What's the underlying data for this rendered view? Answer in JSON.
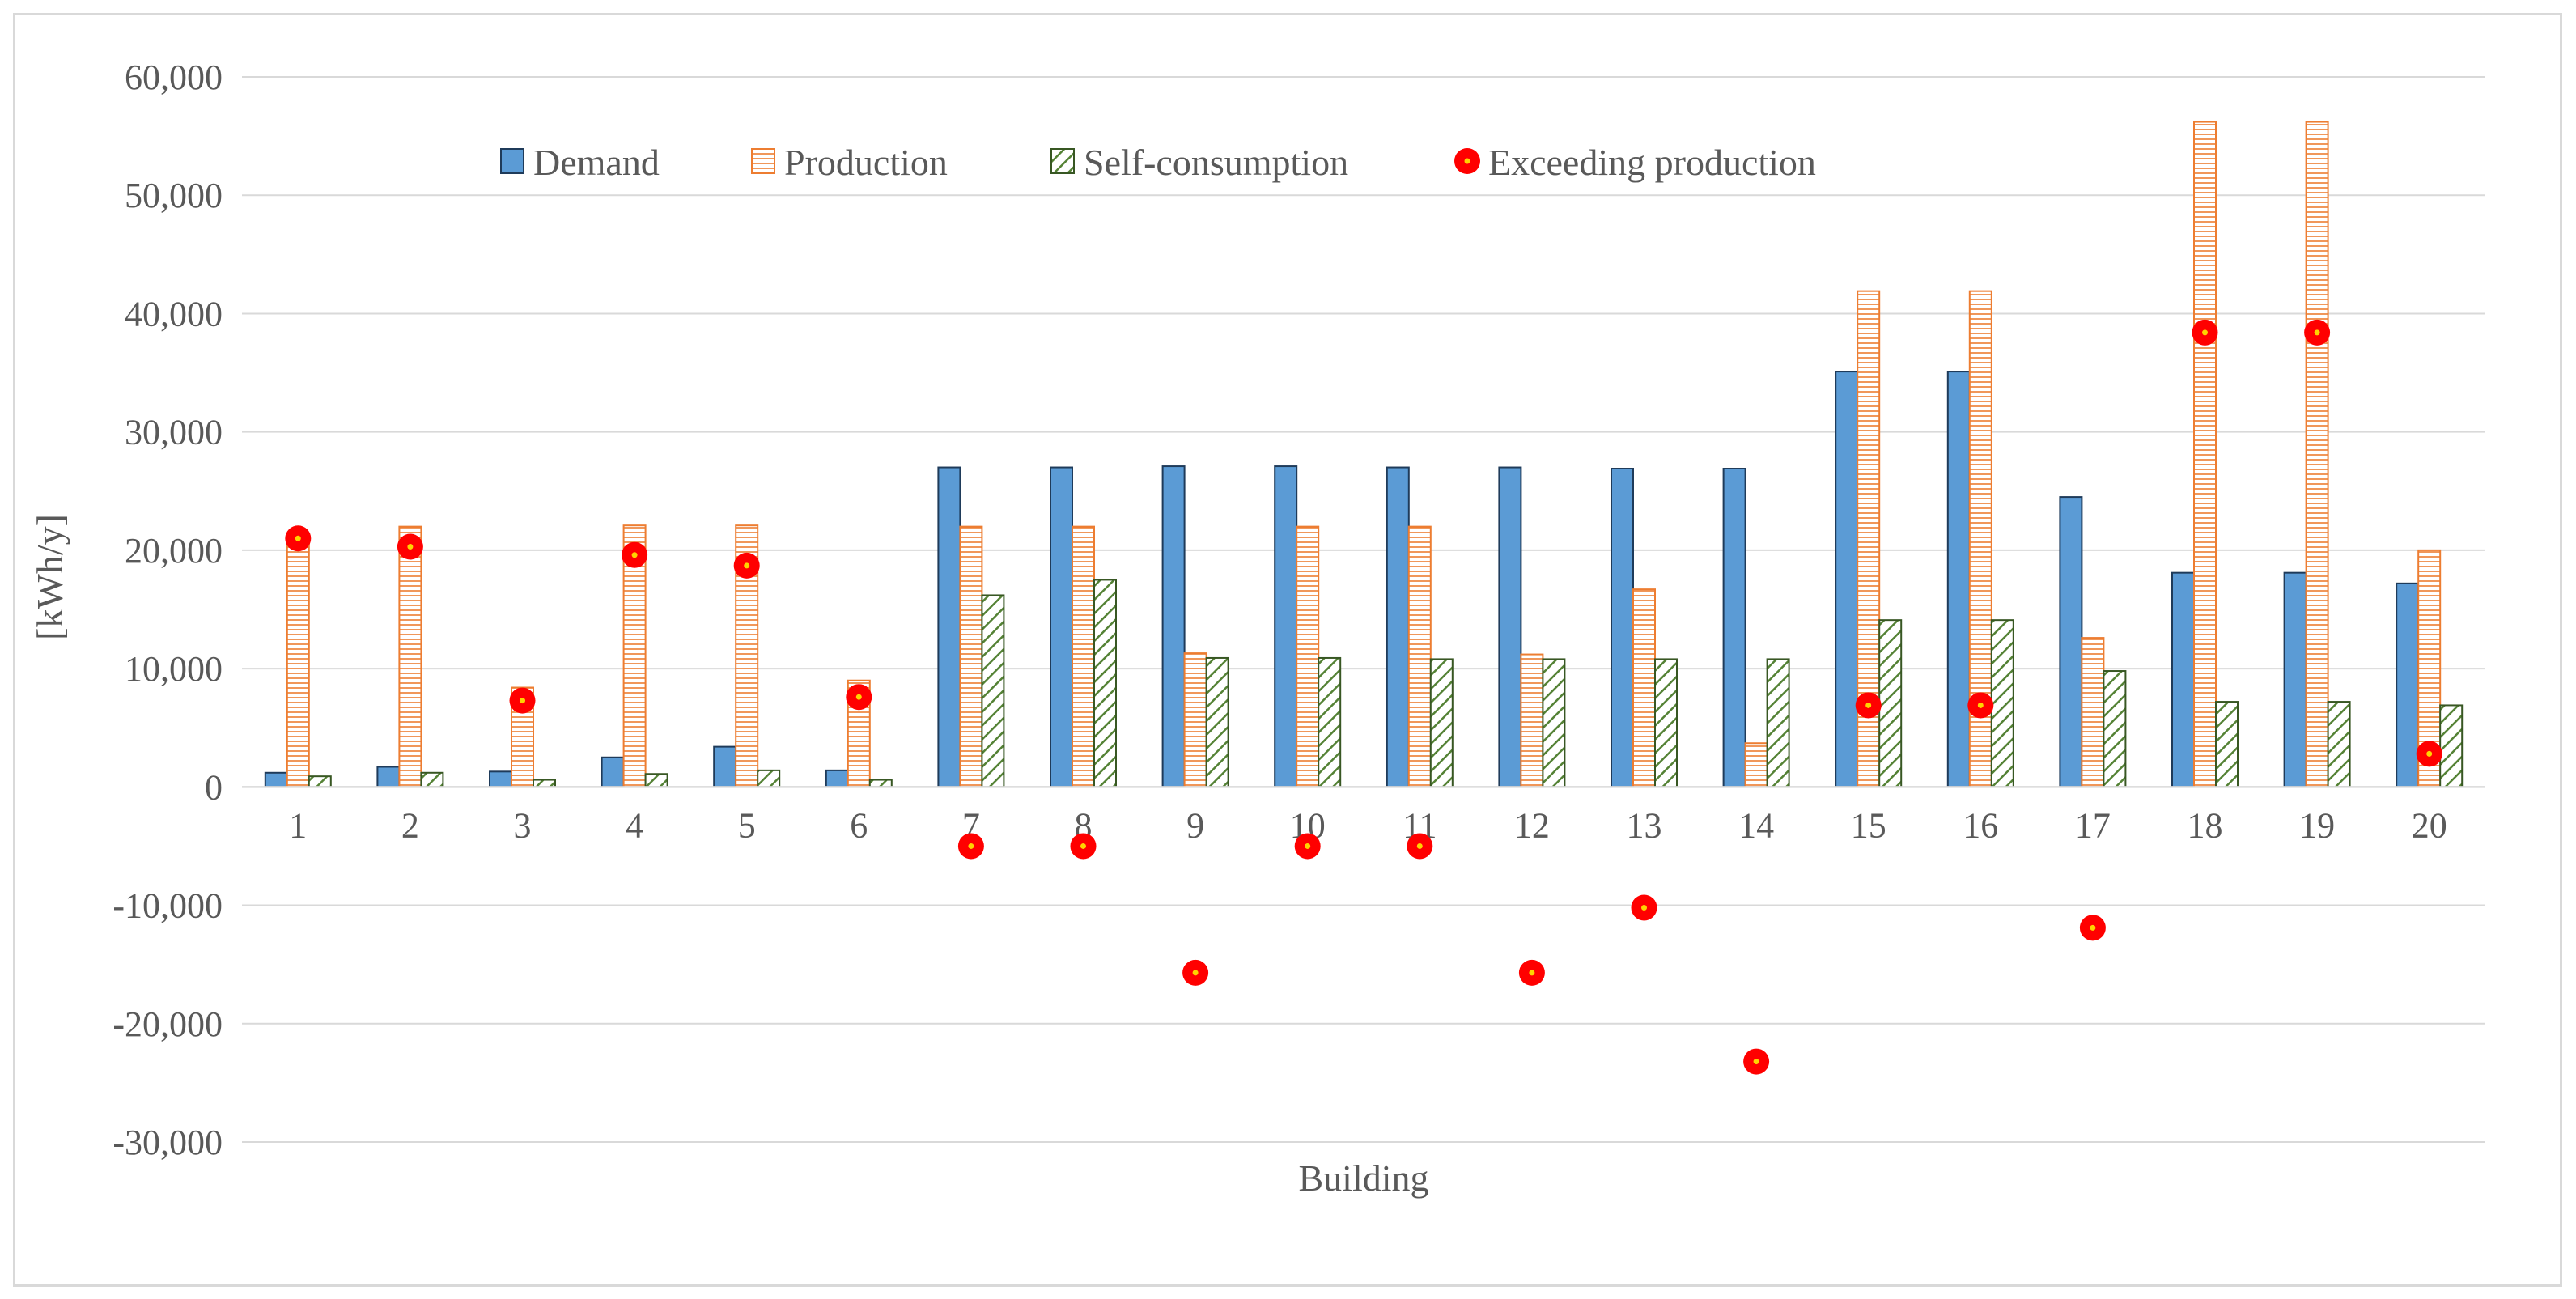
{
  "chart_data": {
    "type": "bar",
    "title": "",
    "xlabel": "Building",
    "ylabel": "[kWh/y]",
    "ylim": [
      -30000,
      60000
    ],
    "ytick_step": 10000,
    "ytick_labels": [
      "-30,000",
      "-20,000",
      "-10,000",
      "0",
      "10,000",
      "20,000",
      "30,000",
      "40,000",
      "50,000",
      "60,000"
    ],
    "grid": true,
    "legend_position": "top",
    "categories": [
      "1",
      "2",
      "3",
      "4",
      "5",
      "6",
      "7",
      "8",
      "9",
      "10",
      "11",
      "12",
      "13",
      "14",
      "15",
      "16",
      "17",
      "18",
      "19",
      "20"
    ],
    "series": [
      {
        "name": "Demand",
        "kind": "bar",
        "color": "#5b9bd5",
        "values": [
          1200,
          1700,
          1300,
          2500,
          3400,
          1400,
          27000,
          27000,
          27100,
          27100,
          27000,
          27000,
          26900,
          26900,
          35100,
          35100,
          24500,
          18100,
          18100,
          17200
        ]
      },
      {
        "name": "Production",
        "kind": "bar",
        "color": "#ed7d31",
        "values": [
          21000,
          22000,
          8400,
          22100,
          22100,
          9000,
          22000,
          22000,
          11300,
          22000,
          22000,
          11200,
          16700,
          3700,
          41900,
          41900,
          12600,
          56200,
          56200,
          20000
        ]
      },
      {
        "name": "Self-consumption",
        "kind": "bar",
        "color": "#548235",
        "values": [
          900,
          1200,
          600,
          1100,
          1400,
          600,
          16200,
          17500,
          10900,
          10900,
          10800,
          10800,
          10800,
          10800,
          14100,
          14100,
          9800,
          7200,
          7200,
          6900
        ]
      },
      {
        "name": "Exceeding production",
        "kind": "scatter",
        "color": "#ff0000",
        "values": [
          21000,
          20300,
          7300,
          19600,
          18700,
          7600,
          -5000,
          -5000,
          -15700,
          -5000,
          -5000,
          -15700,
          -10200,
          -23200,
          6900,
          6900,
          -11900,
          38400,
          38400,
          2800
        ]
      }
    ]
  }
}
